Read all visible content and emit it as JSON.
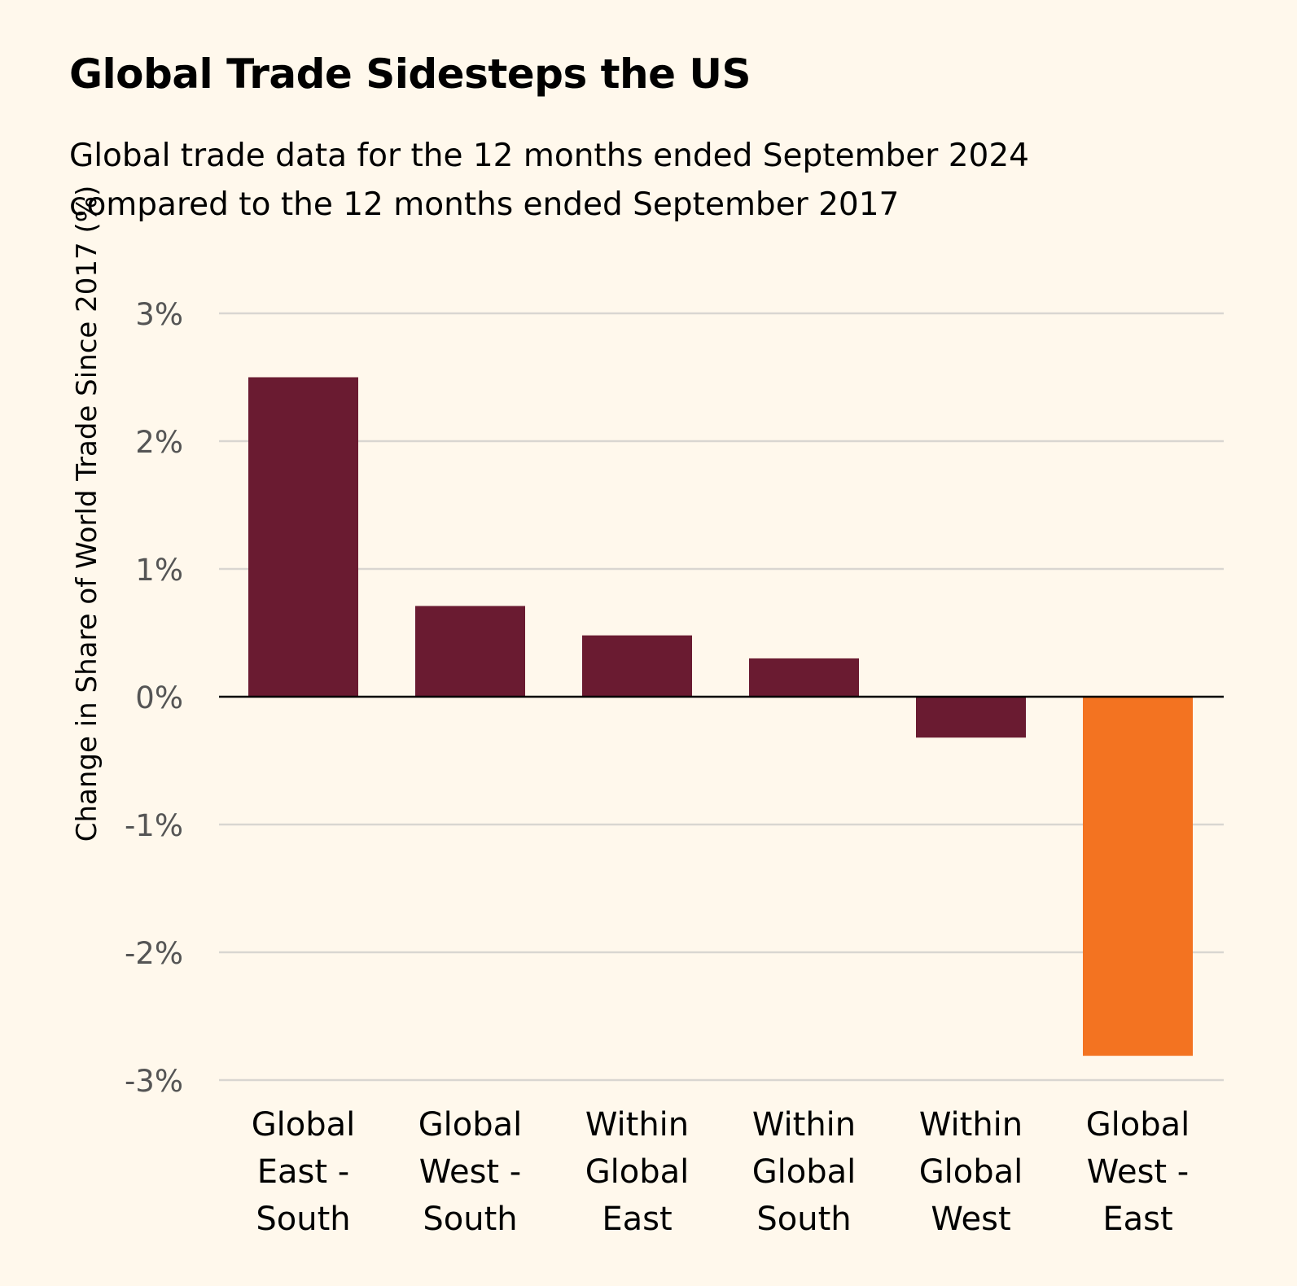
{
  "chart_data": {
    "type": "bar",
    "title": "Global Trade Sidesteps the US",
    "subtitle": [
      "Global trade data for the 12 months ended September 2024",
      "compared to the 12 months ended September 2017"
    ],
    "ylabel": "Change in Share of World Trade Since 2017 (%)",
    "xlabel": "",
    "categories": [
      [
        "Global",
        "East -",
        "South"
      ],
      [
        "Global",
        "West -",
        "South"
      ],
      [
        "Within",
        "Global",
        "East"
      ],
      [
        "Within",
        "Global",
        "South"
      ],
      [
        "Within",
        "Global",
        "West"
      ],
      [
        "Global",
        "West -",
        "East"
      ]
    ],
    "values": [
      2.5,
      0.71,
      0.48,
      0.3,
      -0.32,
      -2.81
    ],
    "ylim": [
      -3,
      3
    ],
    "yticks": [
      3,
      2,
      1,
      0,
      -1,
      -2,
      -3
    ],
    "ytick_labels": [
      "3%",
      "2%",
      "1%",
      "0%",
      "-1%",
      "-2%",
      "-3%"
    ],
    "grid": true,
    "colors": {
      "default": "#6a1b31",
      "highlight": "#f37321",
      "grid": "#d9d6d1",
      "zero_line": "#000000"
    },
    "highlight_index": 5
  }
}
